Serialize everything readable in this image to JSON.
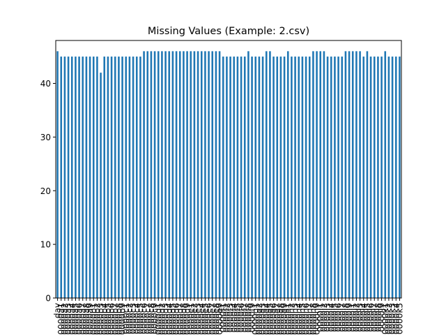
{
  "chart_data": {
    "type": "bar",
    "title": "Missing Values (Example: 2.csv)",
    "xlabel": "",
    "ylabel": "",
    "ylim": [
      0,
      48
    ],
    "yticks": [
      0,
      10,
      20,
      30,
      40
    ],
    "grid": false,
    "legend": "none",
    "bar_color": "#1f77b4",
    "categories": [
      "day",
      "0000a1",
      "0000a2",
      "0000a3",
      "0000a4",
      "0000a5",
      "0000a6",
      "0000a7",
      "0000a8",
      "0000a9",
      "0000b1",
      "0000b2",
      "0000b3",
      "0000b4",
      "0000b5",
      "0000b6",
      "0000b7",
      "0000b8",
      "0000b9",
      "0000c1",
      "0000c2",
      "0000c3",
      "0000c4",
      "0000c5",
      "0000c6",
      "0000c7",
      "0000c8",
      "0000c9",
      "0000d1",
      "0000d2",
      "0000d3",
      "0000d4",
      "0000d5",
      "0000d6",
      "0000d7",
      "0000d8",
      "0000d9",
      "0000e1",
      "0000e2",
      "0000e3",
      "0000e4",
      "0000e5",
      "0000e6",
      "0000e7",
      "0000e8",
      "0000e9",
      "0000f1",
      "0000f2",
      "0000f3",
      "0000f4",
      "0000f5",
      "0000f6",
      "0000f7",
      "0000f8",
      "0000f9",
      "0000g1",
      "0000g2",
      "0000g3",
      "0000g4",
      "0000g5",
      "0000g6",
      "0000g7",
      "0000g8",
      "0000g9",
      "0000h1",
      "0000h2",
      "0000h3",
      "0000h4",
      "0000h5",
      "0000h6",
      "0000h7",
      "0000h8",
      "0000h9",
      "0000i1",
      "0000i2",
      "0000i3",
      "0000i4",
      "0000i5",
      "0000i6",
      "0000i7",
      "0000i8",
      "0000i9",
      "0000j1",
      "0000j2",
      "0000j3",
      "0000j4",
      "0000j5",
      "0000j6",
      "0000j7",
      "0000j8",
      "0000j9",
      "0000k1",
      "0000k2",
      "0000k3",
      "0000k4",
      "0000k5"
    ],
    "values": [
      46,
      45,
      45,
      45,
      45,
      45,
      45,
      45,
      45,
      45,
      45,
      45,
      42,
      45,
      45,
      45,
      45,
      45,
      45,
      45,
      45,
      45,
      45,
      45,
      46,
      46,
      46,
      46,
      46,
      46,
      46,
      46,
      46,
      46,
      46,
      46,
      46,
      46,
      46,
      46,
      46,
      46,
      46,
      46,
      46,
      46,
      45,
      45,
      45,
      45,
      45,
      45,
      45,
      46,
      45,
      45,
      45,
      45,
      46,
      46,
      45,
      45,
      45,
      45,
      46,
      45,
      45,
      45,
      45,
      45,
      45,
      46,
      46,
      46,
      46,
      45,
      45,
      45,
      45,
      45,
      46,
      46,
      46,
      46,
      46,
      45,
      46,
      45,
      45,
      45,
      45,
      46,
      45,
      45,
      45,
      45
    ]
  }
}
